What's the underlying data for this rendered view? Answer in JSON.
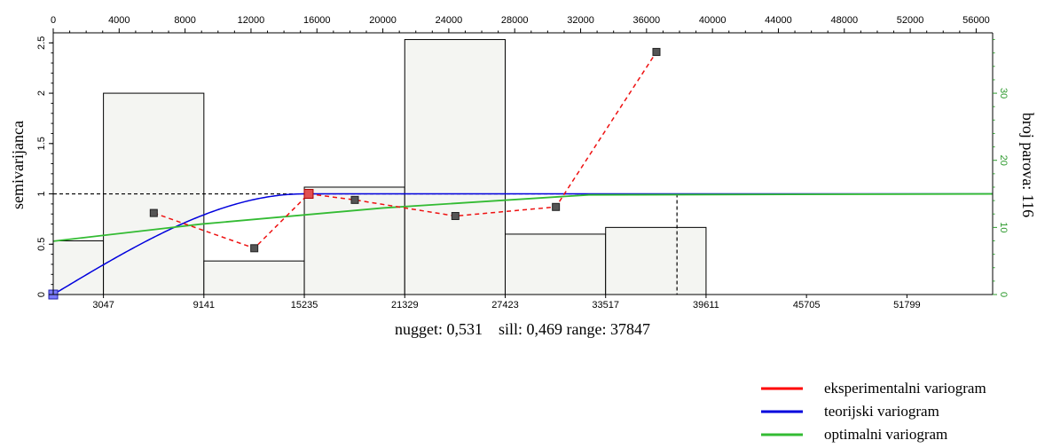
{
  "chart_data": {
    "type": "variogram",
    "ylabel": "semivarijanca",
    "y2label": "broj parova: 116",
    "params_text": "nugget: 0,531    sill: 0,469 range: 37847",
    "nugget": 0.531,
    "sill": 0.469,
    "range": 37847,
    "xlim": [
      0,
      57000
    ],
    "ylim": [
      0,
      2.6
    ],
    "y2lim": [
      0,
      39
    ],
    "top_ticks": [
      0,
      4000,
      8000,
      12000,
      16000,
      20000,
      24000,
      28000,
      32000,
      36000,
      40000,
      44000,
      48000,
      52000,
      56000
    ],
    "bottom_ticks": [
      3047,
      9141,
      15235,
      21329,
      27423,
      33517,
      39611,
      45705,
      51799
    ],
    "left_ticks": [
      {
        "value": 0,
        "label": "0"
      },
      {
        "value": 0.5,
        "label": "0.5"
      },
      {
        "value": 1,
        "label": "1"
      },
      {
        "value": 1.5,
        "label": "1.5"
      },
      {
        "value": 2,
        "label": "2"
      },
      {
        "value": 2.5,
        "label": "2.5"
      }
    ],
    "right_ticks": [
      0,
      10,
      20,
      30
    ],
    "histogram": [
      {
        "from": 0,
        "to": 3047,
        "pairs": 8
      },
      {
        "from": 3047,
        "to": 9141,
        "pairs": 30
      },
      {
        "from": 9141,
        "to": 15235,
        "pairs": 5
      },
      {
        "from": 15235,
        "to": 21329,
        "pairs": 16
      },
      {
        "from": 21329,
        "to": 27423,
        "pairs": 38
      },
      {
        "from": 27423,
        "to": 33517,
        "pairs": 9
      },
      {
        "from": 33517,
        "to": 39611,
        "pairs": 10
      }
    ],
    "experimental": [
      {
        "x": 6100,
        "y": 0.81
      },
      {
        "x": 12200,
        "y": 0.46
      },
      {
        "x": 15500,
        "y": 1.0
      },
      {
        "x": 18300,
        "y": 0.94
      },
      {
        "x": 24400,
        "y": 0.78
      },
      {
        "x": 30500,
        "y": 0.87
      },
      {
        "x": 36600,
        "y": 2.41
      }
    ],
    "sill_total": 1.0,
    "optimal_points": [
      {
        "x": 0,
        "y": 0.53
      },
      {
        "x": 9000,
        "y": 0.7
      },
      {
        "x": 20000,
        "y": 0.86
      },
      {
        "x": 32500,
        "y": 0.99
      },
      {
        "x": 57000,
        "y": 1.0
      }
    ],
    "legend": [
      {
        "label": "eksperimentalni variogram",
        "color": "#ff0000"
      },
      {
        "label": "teorijski variogram",
        "color": "#0000dd"
      },
      {
        "label": "optimalni variogram",
        "color": "#33bb33"
      }
    ],
    "colors": {
      "experimental": "#ee1111",
      "theoretical": "#0000dd",
      "optimal": "#33bb33",
      "histogram_fill": "#f4f5f2",
      "right_axis": "#2e9a2e"
    }
  }
}
